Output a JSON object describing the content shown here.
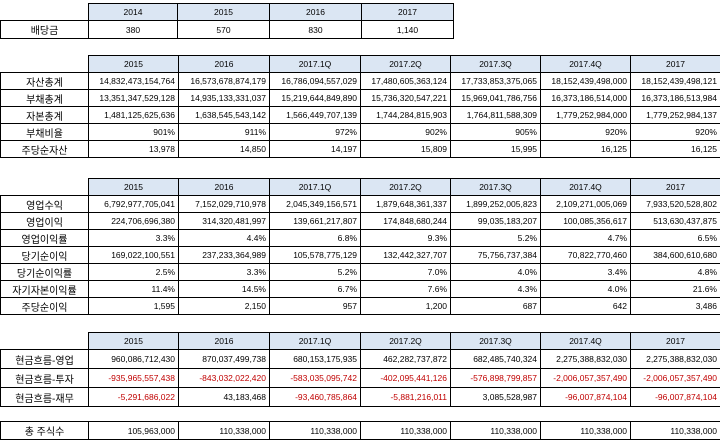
{
  "dividend": {
    "label": "배당금",
    "years": [
      "2014",
      "2015",
      "2016",
      "2017"
    ],
    "values": [
      "380",
      "570",
      "830",
      "1,140"
    ]
  },
  "balance": {
    "periods": [
      "2015",
      "2016",
      "2017.1Q",
      "2017.2Q",
      "2017.3Q",
      "2017.4Q",
      "2017"
    ],
    "rows": [
      {
        "label": "자산총계",
        "values": [
          "14,832,473,154,764",
          "16,573,678,874,179",
          "16,786,094,557,029",
          "17,480,605,363,124",
          "17,733,853,375,065",
          "18,152,439,498,000",
          "18,152,439,498,121"
        ]
      },
      {
        "label": "부채총계",
        "values": [
          "13,351,347,529,128",
          "14,935,133,331,037",
          "15,219,644,849,890",
          "15,736,320,547,221",
          "15,969,041,786,756",
          "16,373,186,514,000",
          "16,373,186,513,984"
        ]
      },
      {
        "label": "자본총계",
        "values": [
          "1,481,125,625,636",
          "1,638,545,543,142",
          "1,566,449,707,139",
          "1,744,284,815,903",
          "1,764,811,588,309",
          "1,779,252,984,000",
          "1,779,252,984,137"
        ]
      },
      {
        "label": "부채비율",
        "values": [
          "901%",
          "911%",
          "972%",
          "902%",
          "905%",
          "920%",
          "920%"
        ]
      },
      {
        "label": "주당순자산",
        "values": [
          "13,978",
          "14,850",
          "14,197",
          "15,809",
          "15,995",
          "16,125",
          "16,125"
        ]
      }
    ]
  },
  "income": {
    "periods": [
      "2015",
      "2016",
      "2017.1Q",
      "2017.2Q",
      "2017.3Q",
      "2017.4Q",
      "2017"
    ],
    "rows": [
      {
        "label": "영업수익",
        "values": [
          "6,792,977,705,041",
          "7,152,029,710,978",
          "2,045,349,156,571",
          "1,879,648,361,337",
          "1,899,252,005,823",
          "2,109,271,005,069",
          "7,933,520,528,802"
        ]
      },
      {
        "label": "영업이익",
        "values": [
          "224,706,696,380",
          "314,320,481,997",
          "139,661,217,807",
          "174,848,680,244",
          "99,035,183,207",
          "100,085,356,617",
          "513,630,437,875"
        ]
      },
      {
        "label": "영업이익률",
        "values": [
          "3.3%",
          "4.4%",
          "6.8%",
          "9.3%",
          "5.2%",
          "4.7%",
          "6.5%"
        ]
      },
      {
        "label": "당기순이익",
        "values": [
          "169,022,100,551",
          "237,233,364,989",
          "105,578,775,129",
          "132,442,327,707",
          "75,756,737,384",
          "70,822,770,460",
          "384,600,610,680"
        ]
      },
      {
        "label": "당기순이익률",
        "values": [
          "2.5%",
          "3.3%",
          "5.2%",
          "7.0%",
          "4.0%",
          "3.4%",
          "4.8%"
        ]
      },
      {
        "label": "자기자본이익률",
        "values": [
          "11.4%",
          "14.5%",
          "6.7%",
          "7.6%",
          "4.3%",
          "4.0%",
          "21.6%"
        ]
      },
      {
        "label": "주당순이익",
        "values": [
          "1,595",
          "2,150",
          "957",
          "1,200",
          "687",
          "642",
          "3,486"
        ]
      }
    ]
  },
  "cashflow": {
    "periods": [
      "2015",
      "2016",
      "2017.1Q",
      "2017.2Q",
      "2017.3Q",
      "2017.4Q",
      "2017"
    ],
    "rows": [
      {
        "label": "현금흐름-영업",
        "values": [
          "960,086,712,430",
          "870,037,499,738",
          "680,153,175,935",
          "462,282,737,872",
          "682,485,740,324",
          "2,275,388,832,030",
          "2,275,388,832,030"
        ]
      },
      {
        "label": "현금흐름-투자",
        "values": [
          "-935,965,557,438",
          "-843,032,022,420",
          "-583,035,095,742",
          "-402,095,441,126",
          "-576,898,799,857",
          "-2,006,057,357,490",
          "-2,006,057,357,490"
        ]
      },
      {
        "label": "현금흐름-재무",
        "values": [
          "-5,291,686,022",
          "43,183,468",
          "-93,460,785,864",
          "-5,881,216,011",
          "3,085,528,987",
          "-96,007,874,104",
          "-96,007,874,104"
        ]
      }
    ]
  },
  "shares": {
    "label": "총 주식수",
    "values": [
      "105,963,000",
      "110,338,000",
      "110,338,000",
      "110,338,000",
      "110,338,000",
      "110,338,000",
      "110,338,000"
    ]
  },
  "colors": {
    "header_fill": "#dbe6f3",
    "negative": "#c00000",
    "grid": "#000000"
  }
}
